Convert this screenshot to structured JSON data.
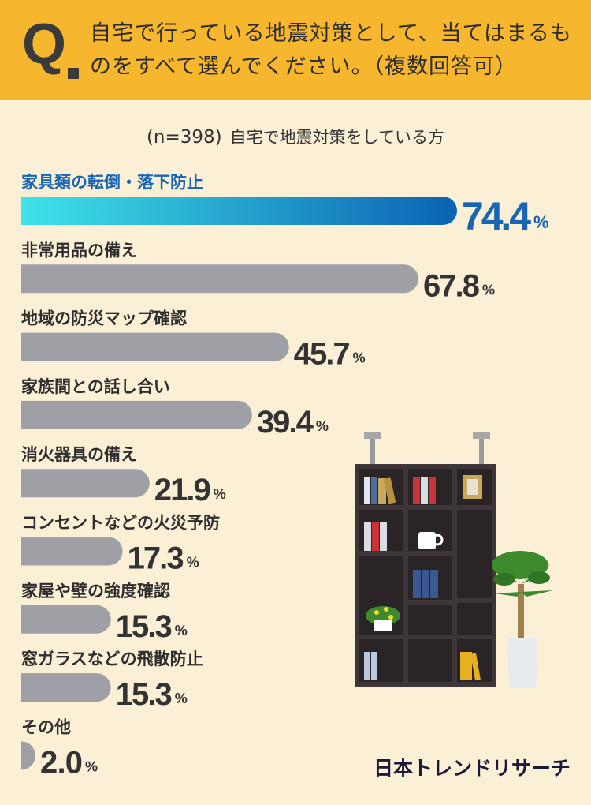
{
  "header": {
    "q_letter": "Q",
    "question": "自宅で行っている地震対策として、当てはまるものをすべて選んでください。（複数回答可）"
  },
  "subtitle": {
    "n": "(n=398)",
    "text": "自宅で地震対策をしている方"
  },
  "brand": "日本トレンドリサーチ",
  "colors": {
    "header_bg": "#f6b62e",
    "page_bg": "#fbefd6",
    "bar_gray": "#9fa0a5",
    "highlight_start": "#3fe3e8",
    "highlight_end": "#0b62b3",
    "highlight_text": "#1866b3",
    "value_text": "#333333"
  },
  "chart_data": {
    "type": "bar",
    "orientation": "horizontal",
    "unit": "%",
    "xlim": [
      0,
      100
    ],
    "categories": [
      "家具類の転倒・落下防止",
      "非常用品の備え",
      "地域の防災マップ確認",
      "家族間との話し合い",
      "消火器具の備え",
      "コンセントなどの火災予防",
      "家屋や壁の強度確認",
      "窓ガラスなどの飛散防止",
      "その他"
    ],
    "values": [
      74.4,
      67.8,
      45.7,
      39.4,
      21.9,
      17.3,
      15.3,
      15.3,
      2.0
    ],
    "value_labels": [
      "74.4",
      "67.8",
      "45.7",
      "39.4",
      "21.9",
      "17.3",
      "15.3",
      "15.3",
      "2.0"
    ],
    "highlight_index": 0
  }
}
